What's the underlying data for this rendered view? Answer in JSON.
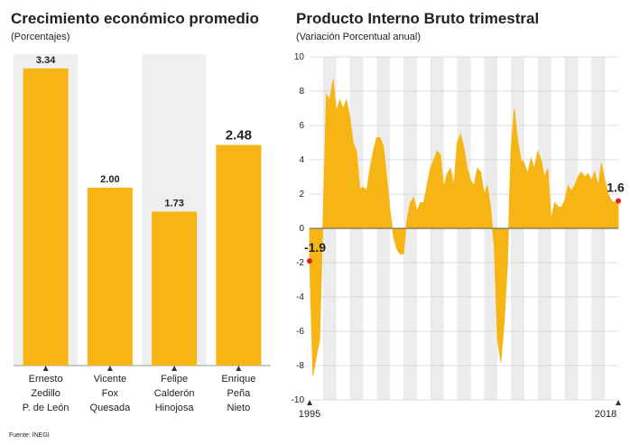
{
  "chart_data": [
    {
      "type": "bar",
      "title": "Crecimiento económico promedio",
      "subtitle": "(Porcentajes)",
      "categories": [
        [
          "Ernesto",
          "Zedillo",
          "P. de León"
        ],
        [
          "Vicente",
          "Fox",
          "Quesada"
        ],
        [
          "Felipe",
          "Calderón",
          "Hinojosa"
        ],
        [
          "Enrique",
          "Peña",
          "Nieto"
        ]
      ],
      "values": [
        3.34,
        2.0,
        1.73,
        2.48
      ],
      "value_labels": [
        "3.34",
        "2.00",
        "1.73",
        "2.48"
      ],
      "color": "#f6b515",
      "ylim": [
        0,
        3.5
      ]
    },
    {
      "type": "area",
      "title": "Producto Interno Bruto trimestral",
      "subtitle": "(Variación Porcentual anual)",
      "categories": [
        "1995",
        null,
        null,
        null,
        null,
        null,
        null,
        null,
        null,
        null,
        null,
        null,
        null,
        null,
        null,
        null,
        null,
        null,
        null,
        null,
        null,
        null,
        null,
        null,
        null,
        null,
        null,
        null,
        null,
        null,
        null,
        null,
        null,
        null,
        null,
        null,
        null,
        null,
        null,
        null,
        null,
        null,
        null,
        null,
        null,
        null,
        null,
        null,
        null,
        null,
        null,
        null,
        null,
        null,
        null,
        null,
        null,
        null,
        null,
        null,
        null,
        null,
        null,
        null,
        null,
        null,
        null,
        null,
        null,
        null,
        null,
        null,
        null,
        null,
        null,
        null,
        null,
        null,
        null,
        null,
        null,
        null,
        null,
        null,
        null,
        null,
        null,
        null,
        null,
        null,
        null,
        null,
        "2018"
      ],
      "values": [
        -1.9,
        -8.6,
        -7.5,
        -6.5,
        0.5,
        7.8,
        7.5,
        8.7,
        6.8,
        7.5,
        7.0,
        7.5,
        6.5,
        5.0,
        4.5,
        2.3,
        2.4,
        2.2,
        3.5,
        4.5,
        5.3,
        5.3,
        4.8,
        3.0,
        1.0,
        -0.5,
        -1.2,
        -1.5,
        -1.5,
        0.5,
        1.5,
        1.8,
        1.0,
        1.5,
        1.5,
        2.5,
        3.5,
        4.0,
        4.5,
        4.3,
        2.4,
        3.2,
        3.5,
        2.5,
        5.0,
        5.5,
        4.7,
        3.5,
        2.8,
        2.5,
        3.5,
        3.3,
        2.0,
        2.5,
        1.2,
        -1.0,
        -6.5,
        -7.8,
        -5.5,
        -2.0,
        4.5,
        7.0,
        5.2,
        4.0,
        3.8,
        3.2,
        4.1,
        3.5,
        4.5,
        4.0,
        3.0,
        3.5,
        0.5,
        1.5,
        1.3,
        1.2,
        1.6,
        2.5,
        2.2,
        2.5,
        3.0,
        3.3,
        3.0,
        3.2,
        2.8,
        3.3,
        2.5,
        3.8,
        2.8,
        2.0,
        1.6,
        1.5,
        1.6
      ],
      "value_labels": [
        "-1.9",
        null,
        null,
        null,
        null,
        null,
        null,
        null,
        null,
        null,
        null,
        null,
        null,
        null,
        null,
        null,
        null,
        null,
        null,
        null,
        null,
        null,
        null,
        null,
        null,
        null,
        null,
        null,
        null,
        null,
        null,
        null,
        null,
        null,
        null,
        null,
        null,
        null,
        null,
        null,
        null,
        null,
        null,
        null,
        null,
        null,
        null,
        null,
        null,
        null,
        null,
        null,
        null,
        null,
        null,
        null,
        null,
        null,
        null,
        null,
        null,
        null,
        null,
        null,
        null,
        null,
        null,
        null,
        null,
        null,
        null,
        null,
        null,
        null,
        null,
        null,
        null,
        null,
        null,
        null,
        null,
        null,
        null,
        null,
        null,
        null,
        null,
        null,
        null,
        null,
        null,
        null,
        "1.6"
      ],
      "color": "#f6b515",
      "ylim": [
        -10,
        10
      ],
      "yticks": [
        -10,
        -8,
        -6,
        -4,
        -2,
        0,
        2,
        4,
        6,
        8,
        10
      ],
      "grid": true
    }
  ],
  "source": "Fuente: INEGI"
}
